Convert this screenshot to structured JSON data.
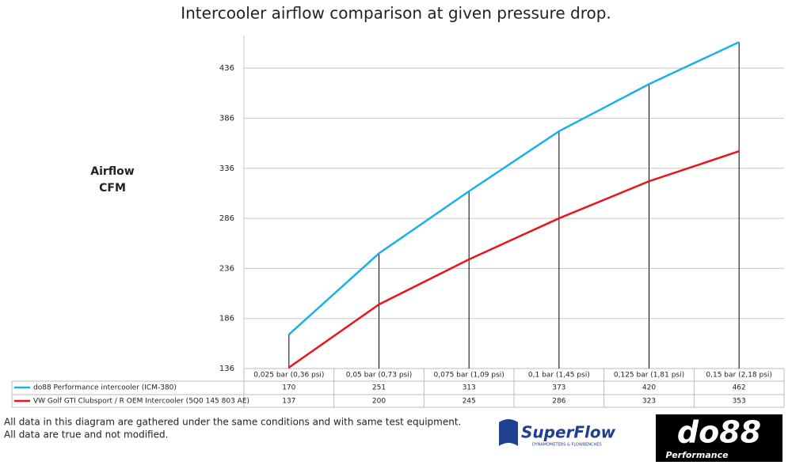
{
  "chart_data": {
    "type": "line",
    "title": "Intercooler airflow comparison at given pressure drop.",
    "y_label": [
      "Airflow",
      "CFM"
    ],
    "categories": [
      "0,025 bar (0,36 psi)",
      "0,05 bar (0,73 psi)",
      "0,075 bar (1,09 psi)",
      "0,1 bar (1,45 psi)",
      "0,125 bar (1,81 psi)",
      "0,15 bar (2,18 psi)"
    ],
    "series": [
      {
        "name": "do88 Performance intercooler (ICM-380)",
        "color": "#1ab0e8",
        "values": [
          170,
          251,
          313,
          373,
          420,
          462
        ]
      },
      {
        "name": "VW Golf GTI Clubsport / R OEM Intercooler (5Q0 145 803 AE)",
        "color": "#e8161b",
        "values": [
          137,
          200,
          245,
          286,
          323,
          353
        ]
      }
    ],
    "ylim": [
      136,
      468.5
    ],
    "yticks": [
      136,
      186,
      236,
      286,
      336,
      386,
      436
    ],
    "grid": true,
    "drop_lines": true
  },
  "footer": {
    "notes": [
      "All data in this diagram are gathered under the same conditions and with same test equipment.",
      "All data are true and not modified."
    ],
    "logos": {
      "superflow": "SuperFlow",
      "superflow_tagline": "DYNAMOMETERS & FLOWBENCHES",
      "do88": "do88",
      "do88_tagline": "Performance"
    }
  }
}
